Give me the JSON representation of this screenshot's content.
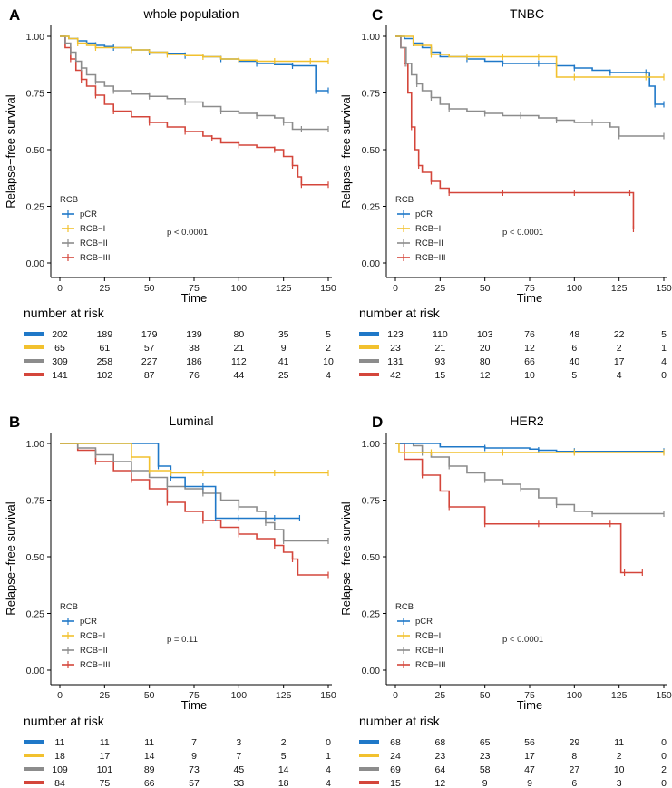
{
  "colors": {
    "pCR": "#1f78c8",
    "RCB-I": "#f2c12e",
    "RCB-II": "#8c8c8c",
    "RCB-III": "#d4463b"
  },
  "common": {
    "ylabel": "Relapse−free survival",
    "xlabel": "Time",
    "legend_title": "RCB",
    "legend_labels": [
      "pCR",
      "RCB−I",
      "RCB−II",
      "RCB−III"
    ],
    "risk_title": "number at risk",
    "xticks": [
      "0",
      "25",
      "50",
      "75",
      "100",
      "125",
      "150"
    ],
    "yticks": [
      "0.00",
      "0.25",
      "0.50",
      "0.75",
      "1.00"
    ]
  },
  "chart_data": [
    {
      "panel": "A",
      "title": "whole population",
      "type": "line",
      "xlim": [
        0,
        150
      ],
      "ylim": [
        0,
        1
      ],
      "pvalue": "p < 0.0001",
      "series": [
        {
          "name": "pCR",
          "x": [
            0,
            5,
            10,
            15,
            20,
            25,
            30,
            40,
            50,
            60,
            70,
            80,
            90,
            100,
            110,
            120,
            130,
            140,
            143,
            150
          ],
          "y": [
            1,
            0.99,
            0.98,
            0.97,
            0.96,
            0.955,
            0.95,
            0.94,
            0.93,
            0.925,
            0.915,
            0.91,
            0.9,
            0.89,
            0.88,
            0.875,
            0.87,
            0.87,
            0.76,
            0.76
          ]
        },
        {
          "name": "RCB-I",
          "x": [
            0,
            5,
            10,
            15,
            20,
            30,
            40,
            50,
            60,
            70,
            80,
            90,
            100,
            110,
            120,
            130,
            140,
            150
          ],
          "y": [
            1,
            0.99,
            0.97,
            0.96,
            0.95,
            0.95,
            0.94,
            0.93,
            0.92,
            0.915,
            0.91,
            0.9,
            0.895,
            0.89,
            0.89,
            0.89,
            0.89,
            0.89
          ]
        },
        {
          "name": "RCB-II",
          "x": [
            0,
            3,
            6,
            9,
            12,
            15,
            20,
            25,
            30,
            40,
            50,
            60,
            70,
            80,
            90,
            100,
            110,
            120,
            125,
            130,
            135,
            150
          ],
          "y": [
            1,
            0.97,
            0.93,
            0.89,
            0.86,
            0.83,
            0.8,
            0.78,
            0.76,
            0.745,
            0.735,
            0.725,
            0.71,
            0.69,
            0.67,
            0.66,
            0.65,
            0.64,
            0.62,
            0.59,
            0.59,
            0.59
          ]
        },
        {
          "name": "RCB-III",
          "x": [
            0,
            3,
            6,
            9,
            12,
            15,
            20,
            25,
            30,
            40,
            50,
            60,
            70,
            80,
            85,
            90,
            100,
            110,
            120,
            125,
            130,
            133,
            135,
            150
          ],
          "y": [
            1,
            0.95,
            0.9,
            0.85,
            0.81,
            0.78,
            0.74,
            0.7,
            0.67,
            0.645,
            0.62,
            0.6,
            0.58,
            0.56,
            0.55,
            0.53,
            0.52,
            0.51,
            0.5,
            0.47,
            0.43,
            0.38,
            0.345,
            0.345
          ]
        }
      ],
      "risk": [
        [
          "202",
          "189",
          "179",
          "139",
          "80",
          "35",
          "5"
        ],
        [
          "65",
          "61",
          "57",
          "38",
          "21",
          "9",
          "2"
        ],
        [
          "309",
          "258",
          "227",
          "186",
          "112",
          "41",
          "10"
        ],
        [
          "141",
          "102",
          "87",
          "76",
          "44",
          "25",
          "4"
        ]
      ]
    },
    {
      "panel": "C",
      "title": "TNBC",
      "type": "line",
      "xlim": [
        0,
        150
      ],
      "ylim": [
        0,
        1
      ],
      "pvalue": "p < 0.0001",
      "series": [
        {
          "name": "pCR",
          "x": [
            0,
            5,
            10,
            15,
            20,
            25,
            40,
            50,
            60,
            70,
            80,
            90,
            100,
            110,
            120,
            130,
            140,
            142,
            145,
            150
          ],
          "y": [
            1,
            0.99,
            0.97,
            0.95,
            0.93,
            0.91,
            0.9,
            0.89,
            0.88,
            0.88,
            0.88,
            0.87,
            0.86,
            0.85,
            0.84,
            0.84,
            0.84,
            0.78,
            0.7,
            0.7
          ]
        },
        {
          "name": "RCB-I",
          "x": [
            0,
            10,
            20,
            30,
            40,
            50,
            60,
            70,
            80,
            90,
            100,
            120,
            140,
            150
          ],
          "y": [
            1,
            0.96,
            0.92,
            0.91,
            0.91,
            0.91,
            0.91,
            0.91,
            0.91,
            0.82,
            0.82,
            0.82,
            0.82,
            0.82
          ]
        },
        {
          "name": "RCB-II",
          "x": [
            0,
            3,
            6,
            9,
            12,
            15,
            20,
            25,
            30,
            40,
            50,
            60,
            70,
            80,
            90,
            100,
            110,
            120,
            125,
            150
          ],
          "y": [
            1,
            0.95,
            0.88,
            0.83,
            0.79,
            0.76,
            0.73,
            0.7,
            0.68,
            0.67,
            0.66,
            0.65,
            0.65,
            0.64,
            0.63,
            0.62,
            0.62,
            0.6,
            0.56,
            0.56
          ]
        },
        {
          "name": "RCB-III",
          "x": [
            0,
            3,
            5,
            7,
            9,
            11,
            13,
            15,
            20,
            25,
            30,
            40,
            60,
            80,
            100,
            120,
            131,
            133
          ],
          "y": [
            1,
            0.95,
            0.88,
            0.75,
            0.6,
            0.5,
            0.43,
            0.4,
            0.36,
            0.33,
            0.31,
            0.31,
            0.31,
            0.31,
            0.31,
            0.31,
            0.31,
            0.15
          ]
        }
      ],
      "risk": [
        [
          "123",
          "110",
          "103",
          "76",
          "48",
          "22",
          "5"
        ],
        [
          "23",
          "21",
          "20",
          "12",
          "6",
          "2",
          "1"
        ],
        [
          "131",
          "93",
          "80",
          "66",
          "40",
          "17",
          "4"
        ],
        [
          "42",
          "15",
          "12",
          "10",
          "5",
          "4",
          "0"
        ]
      ]
    },
    {
      "panel": "B",
      "title": "Luminal",
      "type": "line",
      "xlim": [
        0,
        150
      ],
      "ylim": [
        0,
        1
      ],
      "pvalue": "p = 0.11",
      "series": [
        {
          "name": "pCR",
          "x": [
            0,
            53,
            55,
            60,
            62,
            70,
            80,
            85,
            87,
            90,
            100,
            110,
            120,
            134
          ],
          "y": [
            1,
            1,
            0.9,
            0.9,
            0.85,
            0.81,
            0.81,
            0.81,
            0.67,
            0.67,
            0.67,
            0.67,
            0.67,
            0.67
          ]
        },
        {
          "name": "RCB-I",
          "x": [
            0,
            38,
            40,
            48,
            50,
            58,
            62,
            70,
            80,
            100,
            120,
            150
          ],
          "y": [
            1,
            1,
            0.94,
            0.94,
            0.88,
            0.88,
            0.87,
            0.87,
            0.87,
            0.87,
            0.87,
            0.87
          ]
        },
        {
          "name": "RCB-II",
          "x": [
            0,
            10,
            20,
            30,
            40,
            50,
            60,
            70,
            80,
            90,
            100,
            110,
            115,
            120,
            125,
            150
          ],
          "y": [
            1,
            0.98,
            0.95,
            0.92,
            0.88,
            0.85,
            0.81,
            0.8,
            0.78,
            0.75,
            0.72,
            0.7,
            0.65,
            0.62,
            0.57,
            0.57
          ]
        },
        {
          "name": "RCB-III",
          "x": [
            0,
            10,
            20,
            30,
            40,
            50,
            60,
            70,
            80,
            90,
            100,
            110,
            120,
            125,
            130,
            133,
            150
          ],
          "y": [
            1,
            0.97,
            0.92,
            0.88,
            0.84,
            0.8,
            0.74,
            0.7,
            0.66,
            0.63,
            0.6,
            0.58,
            0.55,
            0.52,
            0.49,
            0.42,
            0.42
          ]
        }
      ],
      "risk": [
        [
          "11",
          "11",
          "11",
          "7",
          "3",
          "2",
          "0"
        ],
        [
          "18",
          "17",
          "14",
          "9",
          "7",
          "5",
          "1"
        ],
        [
          "109",
          "101",
          "89",
          "73",
          "45",
          "14",
          "4"
        ],
        [
          "84",
          "75",
          "66",
          "57",
          "33",
          "18",
          "4"
        ]
      ]
    },
    {
      "panel": "D",
      "title": "HER2",
      "type": "line",
      "xlim": [
        0,
        150
      ],
      "ylim": [
        0,
        1
      ],
      "pvalue": "p < 0.0001",
      "series": [
        {
          "name": "pCR",
          "x": [
            0,
            25,
            50,
            75,
            80,
            90,
            100,
            125,
            150
          ],
          "y": [
            1,
            0.985,
            0.98,
            0.975,
            0.97,
            0.965,
            0.965,
            0.965,
            0.965
          ]
        },
        {
          "name": "RCB-I",
          "x": [
            0,
            2,
            20,
            40,
            60,
            80,
            100,
            120,
            150
          ],
          "y": [
            1,
            0.96,
            0.96,
            0.96,
            0.96,
            0.96,
            0.96,
            0.96,
            0.96
          ]
        },
        {
          "name": "RCB-II",
          "x": [
            0,
            10,
            15,
            20,
            30,
            40,
            50,
            60,
            70,
            80,
            90,
            100,
            110,
            120,
            150
          ],
          "y": [
            1,
            0.99,
            0.96,
            0.94,
            0.9,
            0.87,
            0.84,
            0.82,
            0.8,
            0.76,
            0.73,
            0.7,
            0.69,
            0.69,
            0.69
          ]
        },
        {
          "name": "RCB-III",
          "x": [
            0,
            5,
            15,
            25,
            30,
            40,
            50,
            60,
            80,
            100,
            120,
            126,
            128,
            138
          ],
          "y": [
            1,
            0.93,
            0.86,
            0.79,
            0.72,
            0.72,
            0.645,
            0.645,
            0.645,
            0.645,
            0.645,
            0.43,
            0.43,
            0.43
          ]
        }
      ],
      "risk": [
        [
          "68",
          "68",
          "65",
          "56",
          "29",
          "11",
          "0"
        ],
        [
          "24",
          "23",
          "23",
          "17",
          "8",
          "2",
          "0"
        ],
        [
          "69",
          "64",
          "58",
          "47",
          "27",
          "10",
          "2"
        ],
        [
          "15",
          "12",
          "9",
          "9",
          "6",
          "3",
          "0"
        ]
      ]
    }
  ]
}
